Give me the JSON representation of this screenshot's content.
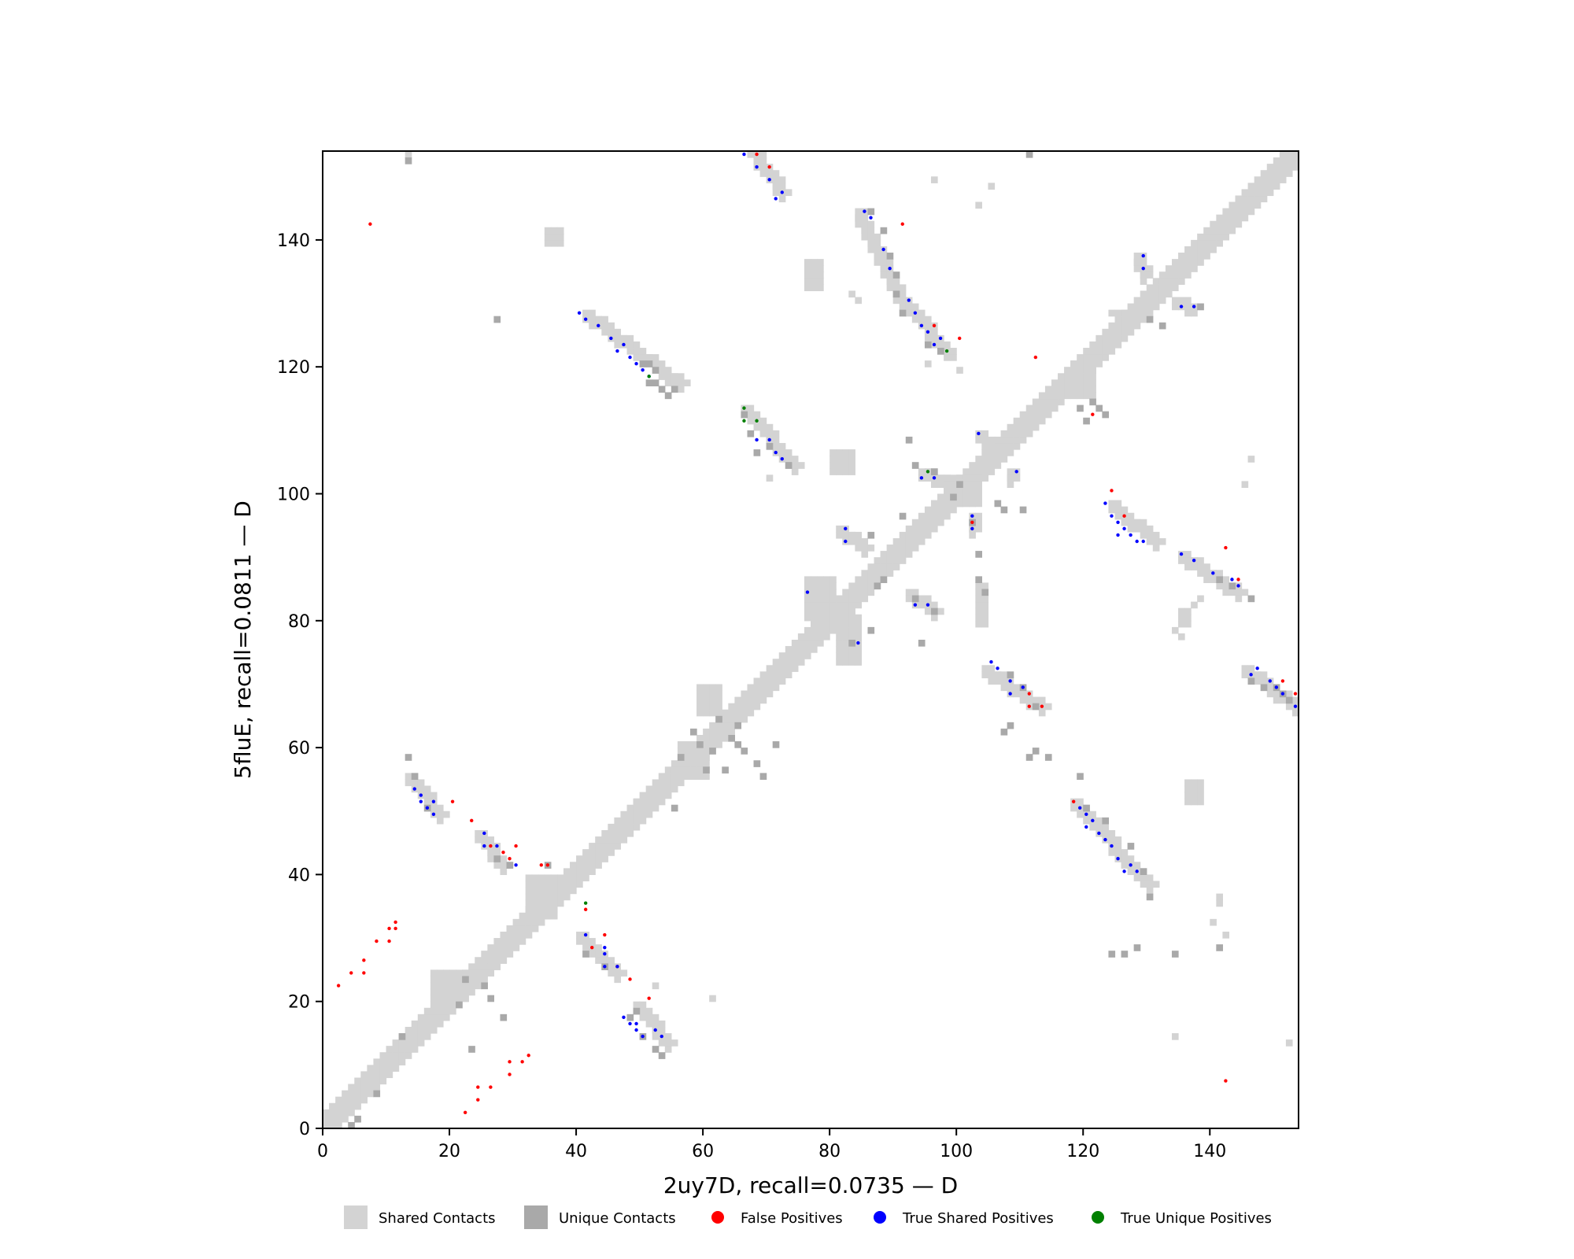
{
  "chart_data": {
    "type": "scatter",
    "xlabel": "2uy7D, recall=0.0735 — D",
    "ylabel": "5fluE, recall=0.0811 — D",
    "xlim": [
      0,
      154
    ],
    "ylim": [
      0,
      154
    ],
    "xticks": [
      0,
      20,
      40,
      60,
      80,
      100,
      120,
      140
    ],
    "yticks": [
      0,
      20,
      40,
      60,
      80,
      100,
      120,
      140
    ],
    "grid": false,
    "legend_position": "bottom",
    "colors": {
      "shared": "#d3d3d3",
      "unique": "#a9a9a9",
      "false_positive": "#ff0000",
      "true_shared": "#0000ff",
      "true_unique": "#008000"
    },
    "legend": [
      {
        "label": "Shared Contacts",
        "kind": "square",
        "color": "#d3d3d3"
      },
      {
        "label": "Unique Contacts",
        "kind": "square",
        "color": "#a9a9a9"
      },
      {
        "label": "False Positives",
        "kind": "dot",
        "color": "#ff0000"
      },
      {
        "label": "True Shared Positives",
        "kind": "dot",
        "color": "#0000ff"
      },
      {
        "label": "True Unique Positives",
        "kind": "dot",
        "color": "#008000"
      }
    ],
    "diagonal_band": {
      "from": 0,
      "to": 153,
      "half_width": 2
    },
    "shared_segments": [
      [
        13,
        55,
        18,
        49
      ],
      [
        24,
        46,
        28,
        41
      ],
      [
        40,
        30,
        46,
        24
      ],
      [
        49,
        19,
        54,
        13
      ],
      [
        84,
        144,
        90,
        131
      ],
      [
        91,
        130,
        98,
        122
      ],
      [
        66,
        113,
        74,
        104
      ],
      [
        102,
        96,
        102,
        94
      ],
      [
        81,
        94,
        85,
        91
      ],
      [
        92,
        84,
        96,
        81
      ],
      [
        104,
        72,
        113,
        66
      ],
      [
        118,
        51,
        130,
        38
      ],
      [
        124,
        98,
        131,
        92
      ],
      [
        135,
        90,
        144,
        84
      ],
      [
        145,
        72,
        153,
        66
      ],
      [
        128,
        137,
        129,
        134
      ],
      [
        134,
        130,
        137,
        129
      ],
      [
        67,
        154,
        72,
        147
      ],
      [
        41,
        128,
        56,
        117
      ],
      [
        94,
        103,
        98,
        101
      ],
      [
        103,
        109,
        105,
        105
      ],
      [
        108,
        103,
        108,
        102
      ]
    ],
    "shared_blobs": [
      [
        32,
        33,
        36,
        39
      ],
      [
        56,
        55,
        60,
        60
      ],
      [
        76,
        80,
        80,
        86
      ],
      [
        81,
        80,
        84,
        73
      ],
      [
        118,
        115,
        121,
        120
      ],
      [
        98,
        98,
        102,
        102
      ],
      [
        59,
        65,
        62,
        69
      ],
      [
        80,
        103,
        83,
        106
      ],
      [
        103,
        85,
        104,
        79
      ],
      [
        124,
        128,
        126,
        128
      ],
      [
        17,
        20,
        22,
        24
      ],
      [
        100,
        98,
        103,
        102
      ],
      [
        35,
        139,
        37,
        141
      ],
      [
        76,
        132,
        78,
        136
      ],
      [
        135,
        79,
        136,
        81
      ],
      [
        136,
        51,
        138,
        54
      ]
    ],
    "shared_dots": [
      [
        13,
        153
      ],
      [
        96,
        149
      ],
      [
        52,
        22
      ],
      [
        61,
        20
      ],
      [
        83,
        131
      ],
      [
        84,
        130
      ],
      [
        105,
        148
      ],
      [
        103,
        145
      ],
      [
        134,
        14
      ],
      [
        152,
        13
      ],
      [
        138,
        83
      ],
      [
        137,
        82
      ],
      [
        134,
        78
      ],
      [
        135,
        77
      ],
      [
        145,
        101
      ],
      [
        146,
        105
      ],
      [
        142,
        30
      ],
      [
        141,
        35
      ],
      [
        141,
        36
      ],
      [
        140,
        32
      ],
      [
        99,
        121
      ],
      [
        100,
        119
      ],
      [
        95,
        120
      ],
      [
        70,
        102
      ]
    ],
    "unique_cells": [
      [
        13,
        152
      ],
      [
        111,
        153
      ],
      [
        4,
        0
      ],
      [
        5,
        1
      ],
      [
        8,
        5
      ],
      [
        12,
        14
      ],
      [
        21,
        19
      ],
      [
        22,
        23
      ],
      [
        25,
        22
      ],
      [
        26,
        20
      ],
      [
        23,
        12
      ],
      [
        28,
        17
      ],
      [
        27,
        127
      ],
      [
        13,
        58
      ],
      [
        14,
        55
      ],
      [
        16,
        50
      ],
      [
        27,
        42
      ],
      [
        29,
        41
      ],
      [
        35,
        41
      ],
      [
        41,
        27
      ],
      [
        44,
        25
      ],
      [
        48,
        17
      ],
      [
        49,
        18
      ],
      [
        50,
        14
      ],
      [
        52,
        12
      ],
      [
        53,
        11
      ],
      [
        55,
        50
      ],
      [
        56,
        58
      ],
      [
        58,
        62
      ],
      [
        59,
        60
      ],
      [
        60,
        56
      ],
      [
        61,
        59
      ],
      [
        62,
        64
      ],
      [
        63,
        56
      ],
      [
        64,
        61
      ],
      [
        65,
        60
      ],
      [
        65,
        63
      ],
      [
        66,
        59
      ],
      [
        68,
        57
      ],
      [
        69,
        55
      ],
      [
        71,
        60
      ],
      [
        66,
        112
      ],
      [
        67,
        109
      ],
      [
        68,
        106
      ],
      [
        70,
        107
      ],
      [
        73,
        104
      ],
      [
        51,
        117
      ],
      [
        52,
        117
      ],
      [
        53,
        116
      ],
      [
        54,
        115
      ],
      [
        55,
        116
      ],
      [
        52,
        119
      ],
      [
        51,
        120
      ],
      [
        50,
        120
      ],
      [
        99,
        99
      ],
      [
        96,
        103
      ],
      [
        100,
        101
      ],
      [
        86,
        144
      ],
      [
        88,
        141
      ],
      [
        89,
        137
      ],
      [
        90,
        134
      ],
      [
        90,
        131
      ],
      [
        91,
        128
      ],
      [
        95,
        123
      ],
      [
        97,
        122
      ],
      [
        102,
        95
      ],
      [
        103,
        90
      ],
      [
        103,
        86
      ],
      [
        104,
        84
      ],
      [
        96,
        81
      ],
      [
        93,
        83
      ],
      [
        87,
        85
      ],
      [
        88,
        86
      ],
      [
        86,
        78
      ],
      [
        94,
        76
      ],
      [
        83,
        76
      ],
      [
        106,
        98
      ],
      [
        107,
        97
      ],
      [
        110,
        97
      ],
      [
        121,
        114
      ],
      [
        122,
        113
      ],
      [
        123,
        112
      ],
      [
        119,
        113
      ],
      [
        120,
        111
      ],
      [
        130,
        127
      ],
      [
        132,
        126
      ],
      [
        138,
        129
      ],
      [
        141,
        86
      ],
      [
        143,
        85
      ],
      [
        146,
        83
      ],
      [
        150,
        69
      ],
      [
        151,
        68
      ],
      [
        152,
        67
      ],
      [
        148,
        69
      ],
      [
        146,
        70
      ],
      [
        111,
        58
      ],
      [
        112,
        59
      ],
      [
        114,
        58
      ],
      [
        119,
        55
      ],
      [
        120,
        50
      ],
      [
        123,
        48
      ],
      [
        127,
        44
      ],
      [
        129,
        40
      ],
      [
        130,
        36
      ],
      [
        128,
        28
      ],
      [
        134,
        27
      ],
      [
        141,
        28
      ],
      [
        126,
        27
      ],
      [
        124,
        27
      ],
      [
        112,
        66
      ],
      [
        110,
        69
      ],
      [
        108,
        63
      ],
      [
        107,
        62
      ],
      [
        108,
        71
      ],
      [
        92,
        108
      ],
      [
        93,
        104
      ],
      [
        86,
        93
      ],
      [
        91,
        96
      ]
    ],
    "false_positives": [
      [
        7,
        142
      ],
      [
        2,
        22
      ],
      [
        4,
        24
      ],
      [
        6,
        24
      ],
      [
        6,
        26
      ],
      [
        8,
        29
      ],
      [
        10,
        29
      ],
      [
        10,
        31
      ],
      [
        11,
        31
      ],
      [
        11,
        32
      ],
      [
        20,
        51
      ],
      [
        23,
        48
      ],
      [
        26,
        44
      ],
      [
        28,
        43
      ],
      [
        29,
        42
      ],
      [
        30,
        44
      ],
      [
        34,
        41
      ],
      [
        35,
        41
      ],
      [
        41,
        34
      ],
      [
        42,
        28
      ],
      [
        44,
        30
      ],
      [
        46,
        25
      ],
      [
        48,
        23
      ],
      [
        51,
        20
      ],
      [
        22,
        2
      ],
      [
        24,
        4
      ],
      [
        24,
        6
      ],
      [
        26,
        6
      ],
      [
        29,
        8
      ],
      [
        29,
        10
      ],
      [
        31,
        10
      ],
      [
        32,
        11
      ],
      [
        68,
        153
      ],
      [
        70,
        151
      ],
      [
        91,
        142
      ],
      [
        96,
        126
      ],
      [
        100,
        124
      ],
      [
        102,
        95
      ],
      [
        112,
        121
      ],
      [
        111,
        68
      ],
      [
        111,
        66
      ],
      [
        113,
        66
      ],
      [
        121,
        112
      ],
      [
        124,
        100
      ],
      [
        126,
        96
      ],
      [
        142,
        91
      ],
      [
        144,
        86
      ],
      [
        151,
        70
      ],
      [
        153,
        68
      ],
      [
        142,
        7
      ],
      [
        118,
        51
      ]
    ],
    "true_shared_positives": [
      [
        66,
        153
      ],
      [
        68,
        151
      ],
      [
        70,
        149
      ],
      [
        72,
        147
      ],
      [
        71,
        146
      ],
      [
        85,
        144
      ],
      [
        86,
        143
      ],
      [
        88,
        138
      ],
      [
        89,
        135
      ],
      [
        92,
        130
      ],
      [
        93,
        128
      ],
      [
        94,
        126
      ],
      [
        95,
        125
      ],
      [
        96,
        123
      ],
      [
        97,
        124
      ],
      [
        40,
        128
      ],
      [
        41,
        127
      ],
      [
        43,
        126
      ],
      [
        45,
        124
      ],
      [
        46,
        122
      ],
      [
        47,
        123
      ],
      [
        48,
        121
      ],
      [
        49,
        120
      ],
      [
        50,
        119
      ],
      [
        51,
        118
      ],
      [
        68,
        108
      ],
      [
        70,
        108
      ],
      [
        71,
        106
      ],
      [
        72,
        105
      ],
      [
        94,
        102
      ],
      [
        96,
        102
      ],
      [
        93,
        82
      ],
      [
        95,
        82
      ],
      [
        103,
        109
      ],
      [
        109,
        103
      ],
      [
        102,
        96
      ],
      [
        102,
        94
      ],
      [
        82,
        94
      ],
      [
        82,
        92
      ],
      [
        76,
        84
      ],
      [
        84,
        76
      ],
      [
        105,
        73
      ],
      [
        106,
        72
      ],
      [
        108,
        70
      ],
      [
        108,
        68
      ],
      [
        110,
        69
      ],
      [
        119,
        50
      ],
      [
        120,
        49
      ],
      [
        121,
        48
      ],
      [
        120,
        47
      ],
      [
        122,
        46
      ],
      [
        123,
        45
      ],
      [
        124,
        44
      ],
      [
        125,
        42
      ],
      [
        126,
        40
      ],
      [
        127,
        41
      ],
      [
        128,
        40
      ],
      [
        123,
        98
      ],
      [
        124,
        96
      ],
      [
        125,
        95
      ],
      [
        126,
        94
      ],
      [
        127,
        93
      ],
      [
        128,
        92
      ],
      [
        129,
        92
      ],
      [
        125,
        93
      ],
      [
        135,
        90
      ],
      [
        137,
        89
      ],
      [
        140,
        87
      ],
      [
        143,
        86
      ],
      [
        144,
        85
      ],
      [
        146,
        71
      ],
      [
        147,
        72
      ],
      [
        149,
        70
      ],
      [
        150,
        69
      ],
      [
        151,
        68
      ],
      [
        153,
        66
      ],
      [
        129,
        137
      ],
      [
        129,
        135
      ],
      [
        135,
        129
      ],
      [
        137,
        129
      ],
      [
        14,
        53
      ],
      [
        15,
        52
      ],
      [
        15,
        51
      ],
      [
        16,
        50
      ],
      [
        17,
        51
      ],
      [
        17,
        49
      ],
      [
        25,
        46
      ],
      [
        25,
        44
      ],
      [
        27,
        44
      ],
      [
        30,
        41
      ],
      [
        41,
        30
      ],
      [
        44,
        28
      ],
      [
        44,
        27
      ],
      [
        44,
        25
      ],
      [
        46,
        25
      ],
      [
        47,
        17
      ],
      [
        48,
        16
      ],
      [
        49,
        16
      ],
      [
        49,
        15
      ],
      [
        50,
        14
      ],
      [
        52,
        15
      ],
      [
        53,
        14
      ]
    ],
    "true_unique_positives": [
      [
        41,
        35
      ],
      [
        51,
        118
      ],
      [
        66,
        113
      ],
      [
        66,
        111
      ],
      [
        68,
        111
      ],
      [
        95,
        103
      ],
      [
        98,
        122
      ]
    ]
  }
}
